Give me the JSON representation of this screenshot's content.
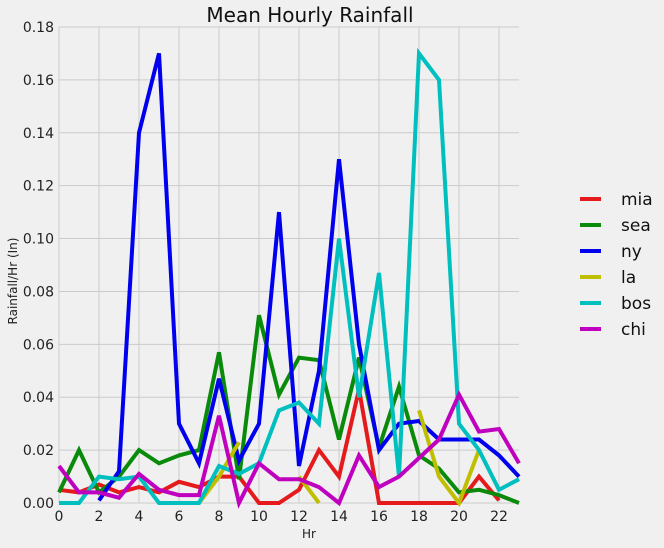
{
  "chart_data": {
    "type": "line",
    "title": "Mean Hourly Rainfall",
    "xlabel": "Hr",
    "ylabel": "Rainfall/Hr (In)",
    "xlim": [
      0,
      23
    ],
    "ylim": [
      0,
      0.18
    ],
    "xticks": [
      "0",
      "2",
      "4",
      "6",
      "8",
      "10",
      "12",
      "14",
      "16",
      "18",
      "20",
      "22"
    ],
    "yticks": [
      "0.00",
      "0.02",
      "0.04",
      "0.06",
      "0.08",
      "0.10",
      "0.12",
      "0.14",
      "0.16",
      "0.18"
    ],
    "grid": true,
    "legend_position": "right",
    "x": [
      0,
      1,
      2,
      3,
      4,
      5,
      6,
      7,
      8,
      9,
      10,
      11,
      12,
      13,
      14,
      15,
      16,
      17,
      18,
      19,
      20,
      21,
      22,
      23
    ],
    "series": [
      {
        "name": "mia",
        "color": "#e41a1c",
        "values": [
          0.005,
          0.004,
          0.007,
          0.004,
          0.006,
          0.004,
          0.008,
          0.006,
          0.01,
          0.01,
          0.0,
          0.0,
          0.005,
          0.02,
          0.01,
          0.043,
          0.0,
          0.0,
          0.0,
          0.0,
          0.0,
          0.01,
          0.001,
          null
        ]
      },
      {
        "name": "sea",
        "color": "#0a8a0a",
        "values": [
          0.004,
          0.02,
          0.004,
          0.01,
          0.02,
          0.015,
          0.018,
          0.02,
          0.057,
          0.009,
          0.071,
          0.041,
          0.055,
          0.054,
          0.024,
          0.055,
          0.021,
          0.044,
          0.018,
          0.013,
          0.004,
          0.005,
          0.003,
          0.0
        ]
      },
      {
        "name": "ny",
        "color": "#0000ee",
        "values": [
          null,
          null,
          0.001,
          0.012,
          0.14,
          0.17,
          0.03,
          0.015,
          0.047,
          0.016,
          0.03,
          0.11,
          0.014,
          0.05,
          0.13,
          0.06,
          0.02,
          0.03,
          0.031,
          0.024,
          0.024,
          0.024,
          0.018,
          0.01
        ]
      },
      {
        "name": "la",
        "color": "#bfbf00",
        "values": [
          null,
          null,
          null,
          null,
          null,
          null,
          null,
          0.0,
          0.01,
          0.023,
          null,
          null,
          0.01,
          0.0,
          null,
          null,
          null,
          null,
          0.035,
          0.01,
          0.0,
          0.02,
          null,
          null
        ]
      },
      {
        "name": "bos",
        "color": "#00bfbf",
        "values": [
          0.0,
          0.0,
          0.01,
          0.009,
          0.01,
          0.0,
          0.0,
          0.0,
          0.014,
          0.011,
          0.015,
          0.035,
          0.038,
          0.03,
          0.1,
          0.04,
          0.087,
          0.01,
          0.17,
          0.16,
          0.03,
          0.02,
          0.005,
          0.009
        ]
      },
      {
        "name": "chi",
        "color": "#bf00bf",
        "values": [
          0.014,
          0.004,
          0.004,
          0.002,
          0.011,
          0.005,
          0.003,
          0.003,
          0.033,
          0.0,
          0.015,
          0.009,
          0.009,
          0.006,
          0.0,
          0.018,
          0.006,
          0.01,
          0.017,
          0.024,
          0.041,
          0.027,
          0.028,
          0.015
        ]
      }
    ]
  }
}
